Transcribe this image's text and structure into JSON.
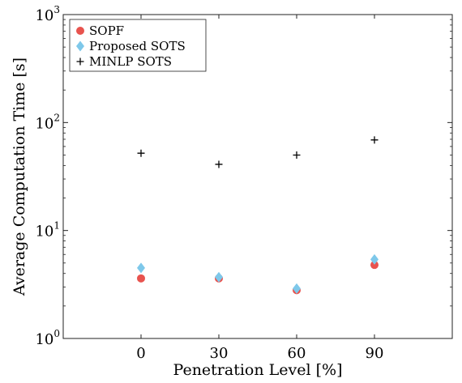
{
  "chart_data": {
    "type": "scatter",
    "xlabel": "Penetration Level [%]",
    "ylabel": "Average Computation Time [s]",
    "x_scale": "linear",
    "y_scale": "log",
    "xlim": [
      -30,
      120
    ],
    "ylim": [
      1,
      1000
    ],
    "x": [
      0,
      30,
      60,
      90
    ],
    "x_tick_labels": [
      "0",
      "30",
      "60",
      "90"
    ],
    "y_ticks": [
      {
        "value": 1,
        "base": "10",
        "exp": "0"
      },
      {
        "value": 10,
        "base": "10",
        "exp": "1"
      },
      {
        "value": 100,
        "base": "10",
        "exp": "2"
      },
      {
        "value": 1000,
        "base": "10",
        "exp": "3"
      }
    ],
    "grid": false,
    "legend_position": "top-left",
    "series": [
      {
        "name": "SOPF",
        "marker": "circle",
        "color": "#e8534e",
        "values": [
          3.6,
          3.6,
          2.8,
          4.8
        ]
      },
      {
        "name": "Proposed SOTS",
        "marker": "diamond",
        "color": "#7ec8ea",
        "values": [
          4.5,
          3.7,
          2.9,
          5.4
        ]
      },
      {
        "name": "MINLP SOTS",
        "marker": "plus",
        "color": "#000000",
        "values": [
          52,
          41,
          50,
          69
        ]
      }
    ]
  }
}
